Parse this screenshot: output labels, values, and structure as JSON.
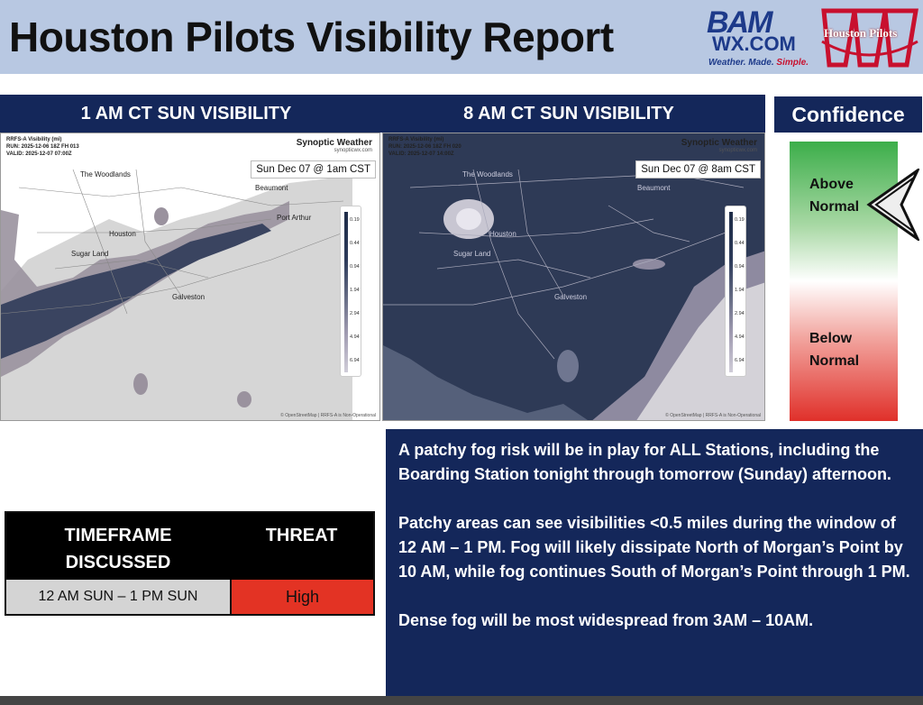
{
  "header": {
    "title": "Houston Pilots Visibility Report",
    "bam_logo": {
      "top": "BAM",
      "domain": "WX.COM",
      "tagline_a": "Weather. Made.",
      "tagline_b": "Simple."
    },
    "pilots_logo_text": "Houston Pilots"
  },
  "maps": [
    {
      "header": "1 AM CT SUN VISIBILITY",
      "info_lines": [
        "RRFS-A Visibility (mi)",
        "RUN: 2025-12-06 18Z FH 013",
        "VALID: 2025-12-07 07:00Z"
      ],
      "brand": "Synoptic Weather",
      "brand_site": "synopticwx.com",
      "date": "Sun Dec 07 @ 1am CST",
      "cities": [
        "The Woodlands",
        "Beaumont",
        "Port Arthur",
        "Houston",
        "Sugar Land",
        "Galveston"
      ],
      "legend": [
        "0.19",
        "0.44",
        "0.94",
        "1.94",
        "2.94",
        "4.94",
        "6.94"
      ],
      "attribution": "© OpenStreetMap | RRFS-A is Non-Operational"
    },
    {
      "header": "8 AM CT SUN VISIBILITY",
      "info_lines": [
        "RRFS-A Visibility (mi)",
        "RUN: 2025-12-06 18Z FH 020",
        "VALID: 2025-12-07 14:00Z"
      ],
      "brand": "Synoptic Weather",
      "brand_site": "synopticwx.com",
      "date": "Sun Dec 07 @ 8am CST",
      "cities": [
        "The Woodlands",
        "Beaumont",
        "Houston",
        "Sugar Land",
        "Galveston"
      ],
      "legend": [
        "0.19",
        "0.44",
        "0.94",
        "1.94",
        "2.94",
        "4.94",
        "6.94"
      ],
      "attribution": "© OpenStreetMap | RRFS-A is Non-Operational"
    }
  ],
  "confidence": {
    "title": "Confidence",
    "above": [
      "Above",
      "Normal"
    ],
    "below": [
      "Below",
      "Normal"
    ],
    "level": "above-normal",
    "colors": {
      "top": "#3cae4a",
      "bottom": "#e0302a"
    }
  },
  "table": {
    "col1_header": [
      "TIMEFRAME",
      "DISCUSSED"
    ],
    "col2_header": "THREAT",
    "timeframe": "12 AM SUN – 1 PM SUN",
    "threat": "High",
    "threat_color": "#e33324"
  },
  "discussion": [
    "A patchy fog risk will be in play for ALL Stations, including the Boarding Station tonight through tomorrow (Sunday) afternoon.",
    "Patchy areas can see visibilities <0.5 miles during the window of 12 AM – 1 PM. Fog will likely dissipate North of Morgan’s Point by 10 AM, while fog continues South of Morgan’s Point through 1 PM.",
    "Dense fog will be most widespread from 3AM – 10AM."
  ]
}
